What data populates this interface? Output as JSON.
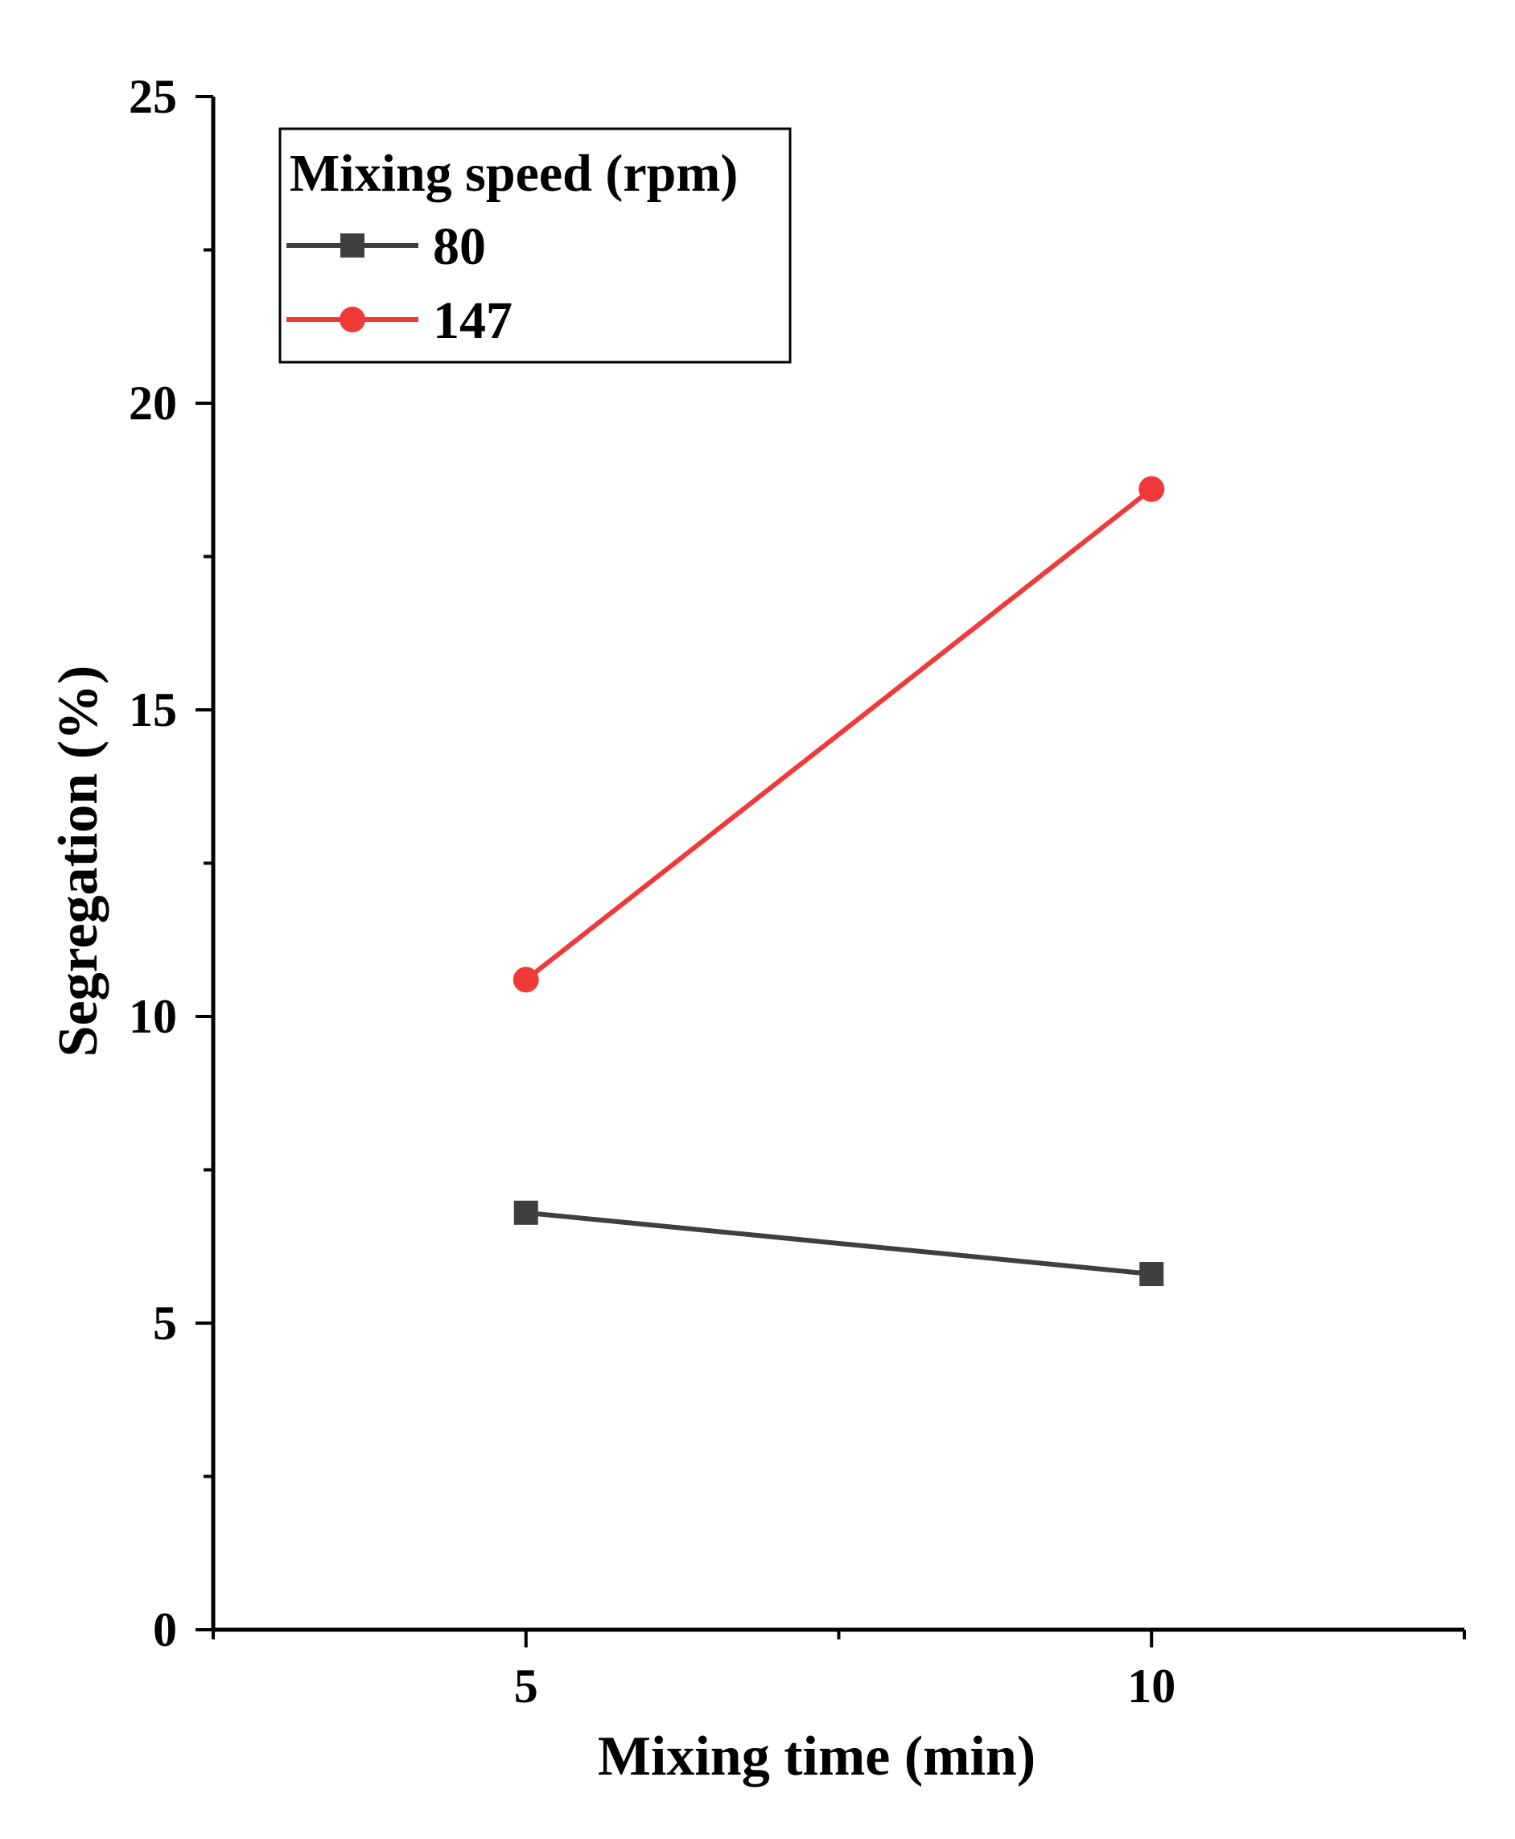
{
  "chart_data": {
    "type": "line",
    "title": "",
    "xlabel": "Mixing time (min)",
    "ylabel": "Segregation (%)",
    "x": [
      5,
      10
    ],
    "xlim": [
      2.5,
      12.5
    ],
    "ylim": [
      0,
      25
    ],
    "x_ticks": [
      5,
      10
    ],
    "x_tick_labels": [
      "5",
      "10"
    ],
    "x_minor_ticks": [
      2.5,
      7.5,
      12.5
    ],
    "y_ticks": [
      0,
      5,
      10,
      15,
      20,
      25
    ],
    "y_tick_labels": [
      "0",
      "5",
      "10",
      "15",
      "20",
      "25"
    ],
    "y_minor_ticks": [
      2.5,
      7.5,
      12.5,
      17.5,
      22.5
    ],
    "grid": false,
    "legend": {
      "title": "Mixing speed (rpm)",
      "placement": "top-left"
    },
    "series": [
      {
        "name": "80",
        "values": [
          6.8,
          5.8
        ],
        "color": "#3f3f3f",
        "marker": "square"
      },
      {
        "name": "147",
        "values": [
          10.6,
          18.6
        ],
        "color": "#f03a3a",
        "marker": "circle"
      }
    ]
  }
}
